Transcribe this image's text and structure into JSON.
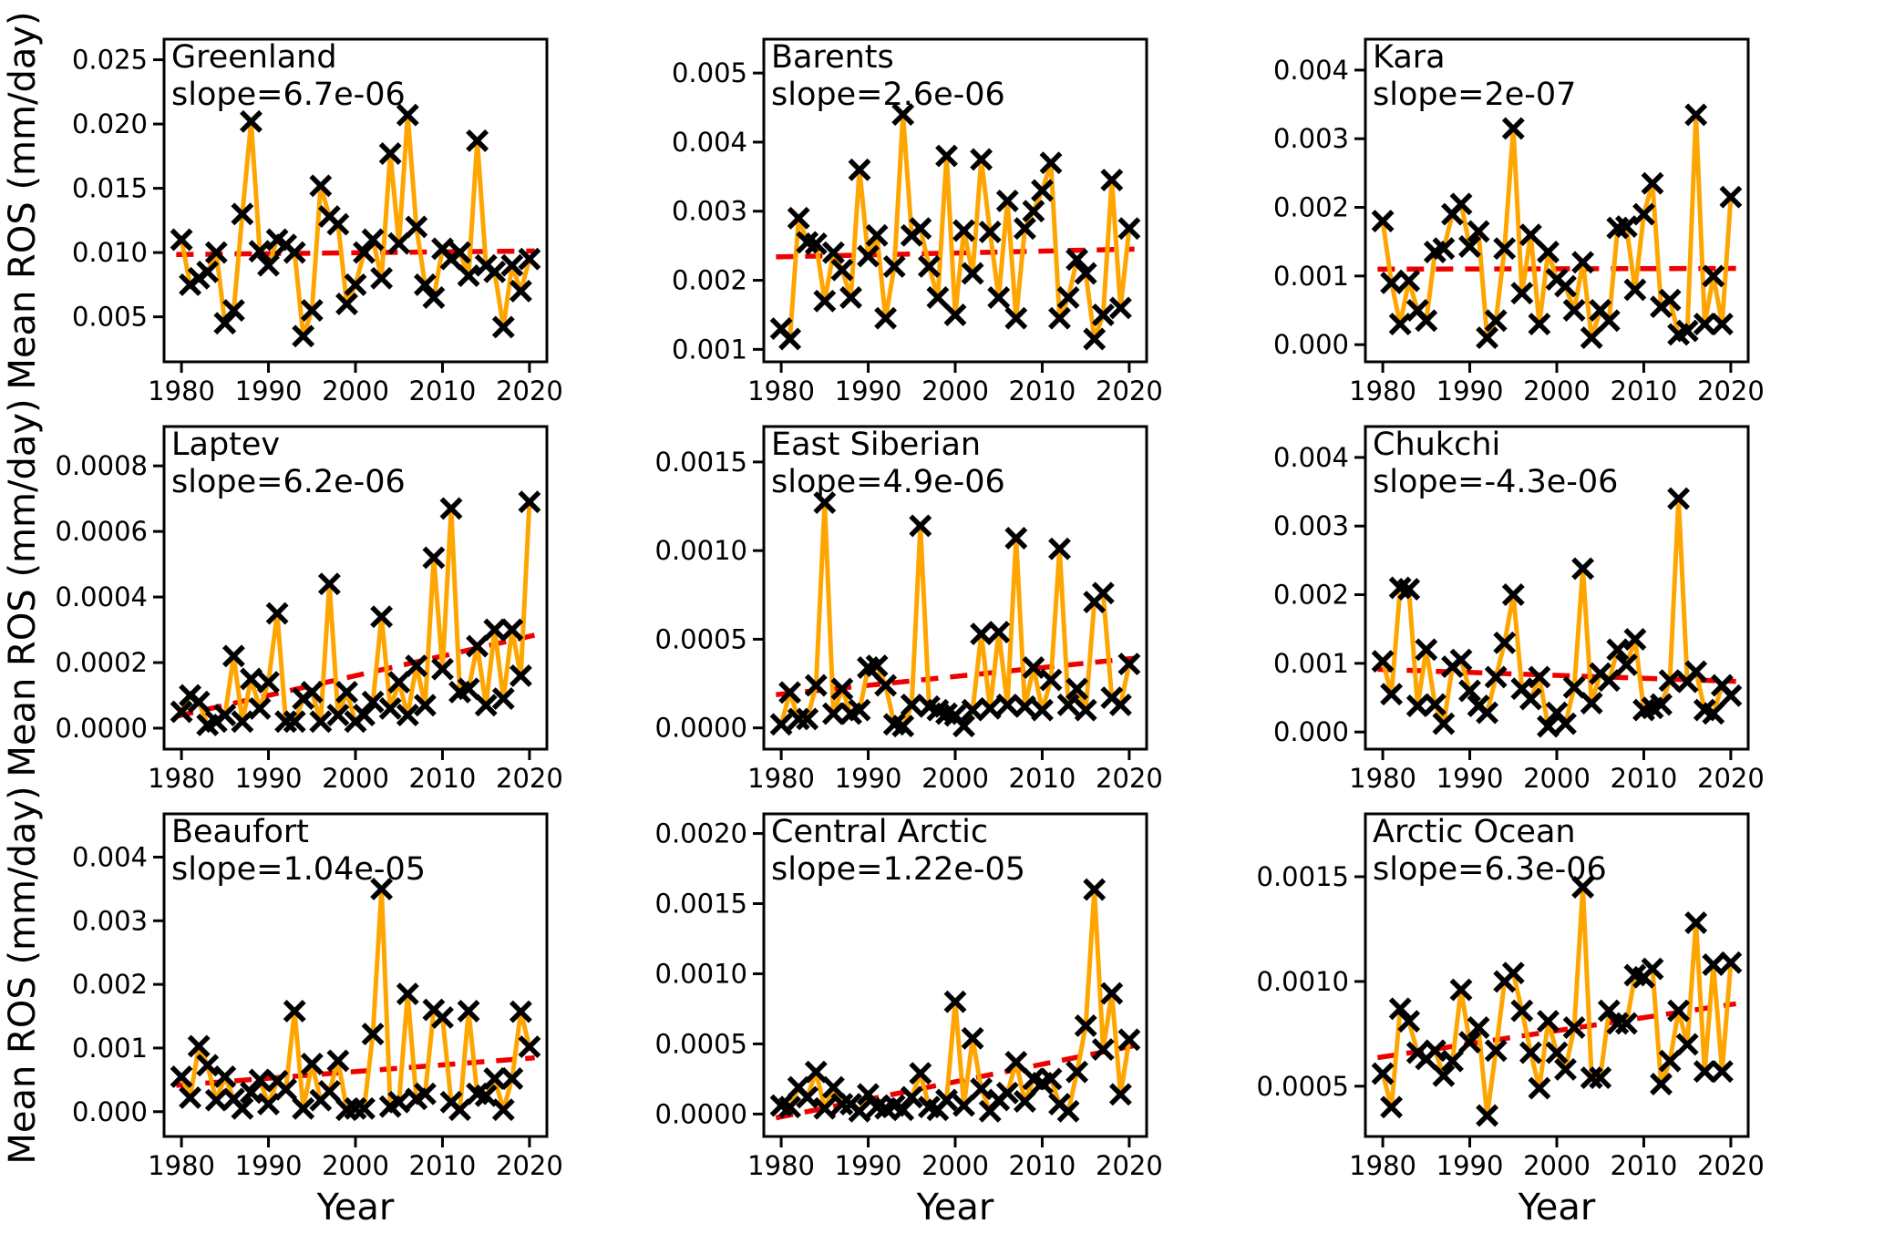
{
  "figure": {
    "ylabel": "Mean ROS (mm/day)",
    "xlabel": "Year",
    "colors": {
      "line": "#FFA500",
      "trend": "#EE0000",
      "marker": "#000000",
      "spine": "#000000",
      "background": "#FFFFFF"
    }
  },
  "chart_data": {
    "type": "line",
    "title": "",
    "xlabel": "Year",
    "ylabel": "Mean ROS (mm/day)",
    "grid": false,
    "legend": null,
    "marker_style": "x",
    "trend_style": "dashed",
    "x_years": [
      1980,
      1981,
      1982,
      1983,
      1984,
      1985,
      1986,
      1987,
      1988,
      1989,
      1990,
      1991,
      1992,
      1993,
      1994,
      1995,
      1996,
      1997,
      1998,
      1999,
      2000,
      2001,
      2002,
      2003,
      2004,
      2005,
      2006,
      2007,
      2008,
      2009,
      2010,
      2011,
      2012,
      2013,
      2014,
      2015,
      2016,
      2017,
      2018,
      2019,
      2020
    ],
    "xticks": [
      1980,
      1990,
      2000,
      2010,
      2020
    ],
    "xlim": [
      1978,
      2022
    ],
    "panels": [
      {
        "region": "Greenland",
        "slope_label": "slope=6.7e-06",
        "slope": 6.7e-06,
        "yticks": [
          0.005,
          0.01,
          0.015,
          0.02,
          0.025
        ],
        "ytick_decimals": 3,
        "ylim": [
          0.0015,
          0.0266
        ],
        "trend_y": [
          0.00985,
          0.01012
        ],
        "values": [
          0.011,
          0.0075,
          0.008,
          0.0085,
          0.01,
          0.0045,
          0.0055,
          0.013,
          0.0202,
          0.0101,
          0.009,
          0.011,
          0.0106,
          0.01,
          0.0035,
          0.0055,
          0.0152,
          0.0128,
          0.0122,
          0.006,
          0.0075,
          0.01,
          0.011,
          0.008,
          0.0177,
          0.0107,
          0.0207,
          0.012,
          0.0075,
          0.0065,
          0.0103,
          0.0095,
          0.01,
          0.0082,
          0.0187,
          0.009,
          0.0085,
          0.0042,
          0.009,
          0.007,
          0.0095
        ]
      },
      {
        "region": "Barents",
        "slope_label": "slope=2.6e-06",
        "slope": 2.6e-06,
        "yticks": [
          0.001,
          0.002,
          0.003,
          0.004,
          0.005
        ],
        "ytick_decimals": 3,
        "ylim": [
          0.00082,
          0.00549
        ],
        "trend_y": [
          0.00234,
          0.00245
        ],
        "values": [
          0.0013,
          0.00115,
          0.0029,
          0.00255,
          0.00253,
          0.0017,
          0.0024,
          0.00215,
          0.00175,
          0.0036,
          0.00235,
          0.00265,
          0.00145,
          0.0022,
          0.0044,
          0.00265,
          0.00275,
          0.0022,
          0.00175,
          0.0038,
          0.0015,
          0.00272,
          0.0021,
          0.00375,
          0.0027,
          0.00175,
          0.00315,
          0.00145,
          0.00275,
          0.003,
          0.0033,
          0.0037,
          0.00145,
          0.00175,
          0.0023,
          0.0021,
          0.00115,
          0.0015,
          0.00345,
          0.0016,
          0.00275
        ]
      },
      {
        "region": "Kara",
        "slope_label": "slope=2e-07",
        "slope": 2e-07,
        "yticks": [
          0.0,
          0.001,
          0.002,
          0.003,
          0.004
        ],
        "ytick_decimals": 3,
        "ylim": [
          -0.00025,
          0.00445
        ],
        "trend_y": [
          0.0011,
          0.00111
        ],
        "values": [
          0.0018,
          0.0009,
          0.0003,
          0.00093,
          0.0005,
          0.00035,
          0.00135,
          0.0014,
          0.0019,
          0.00205,
          0.00143,
          0.00165,
          0.0001,
          0.00035,
          0.0014,
          0.00315,
          0.00075,
          0.0016,
          0.0003,
          0.00135,
          0.00095,
          0.00085,
          0.0005,
          0.0012,
          0.0001,
          0.0005,
          0.00035,
          0.0017,
          0.00172,
          0.0008,
          0.0019,
          0.00235,
          0.00055,
          0.00065,
          0.00015,
          0.0002,
          0.00335,
          0.0003,
          0.001,
          0.0003,
          0.00215
        ]
      },
      {
        "region": "Laptev",
        "slope_label": "slope=6.2e-06",
        "slope": 6.2e-06,
        "yticks": [
          0.0,
          0.0002,
          0.0004,
          0.0006,
          0.0008
        ],
        "ytick_decimals": 4,
        "ylim": [
          -6.4e-05,
          0.00092
        ],
        "trend_y": [
          4e-05,
          0.00028
        ],
        "values": [
          5e-05,
          0.0001,
          8e-05,
          1e-05,
          2e-05,
          4e-05,
          0.00022,
          2e-05,
          0.00015,
          6e-05,
          0.00014,
          0.00035,
          2e-05,
          2e-05,
          9e-05,
          0.00011,
          2e-05,
          0.00044,
          4e-05,
          0.00011,
          2e-05,
          4e-05,
          8e-05,
          0.00034,
          6e-05,
          0.00014,
          4e-05,
          0.00019,
          7e-05,
          0.00052,
          0.00018,
          0.00067,
          0.00011,
          0.00012,
          0.00025,
          7e-05,
          0.0003,
          9e-05,
          0.0003,
          0.00016,
          0.00069
        ]
      },
      {
        "region": "East Siberian",
        "slope_label": "slope=4.9e-06",
        "slope": 4.9e-06,
        "yticks": [
          0.0,
          0.0005,
          0.001,
          0.0015
        ],
        "ytick_decimals": 4,
        "ylim": [
          -0.00012,
          0.0017
        ],
        "trend_y": [
          0.00019,
          0.00039
        ],
        "values": [
          2e-05,
          0.0002,
          5e-05,
          5e-05,
          0.00024,
          0.00127,
          8e-05,
          0.00022,
          8e-05,
          0.0001,
          0.00034,
          0.00035,
          0.00024,
          2e-05,
          1e-05,
          0.00013,
          0.00114,
          0.00012,
          0.0001,
          8e-05,
          7e-05,
          1e-05,
          0.0001,
          0.00053,
          0.00011,
          0.00054,
          0.00013,
          0.00107,
          0.00012,
          0.00034,
          0.0001,
          0.00027,
          0.00101,
          0.00013,
          0.00022,
          0.0001,
          0.00071,
          0.00076,
          0.00017,
          0.00013,
          0.00036
        ]
      },
      {
        "region": "Chukchi",
        "slope_label": "slope=-4.3e-06",
        "slope": -4.3e-06,
        "yticks": [
          0.0,
          0.001,
          0.002,
          0.003,
          0.004
        ],
        "ytick_decimals": 3,
        "ylim": [
          -0.00025,
          0.00445
        ],
        "trend_y": [
          0.00091,
          0.00074
        ],
        "values": [
          0.00103,
          0.00055,
          0.0021,
          0.00208,
          0.00038,
          0.0012,
          0.0004,
          0.00012,
          0.00095,
          0.00105,
          0.0006,
          0.00038,
          0.00028,
          0.0008,
          0.0013,
          0.002,
          0.00063,
          0.00048,
          0.0008,
          8e-05,
          0.00028,
          0.00012,
          0.00065,
          0.00238,
          0.00042,
          0.00085,
          0.00075,
          0.0012,
          0.00098,
          0.00135,
          0.00032,
          0.00035,
          0.0004,
          0.00075,
          0.0034,
          0.00073,
          0.00088,
          0.00032,
          0.00027,
          0.00068,
          0.00053
        ]
      },
      {
        "region": "Beaufort",
        "slope_label": "slope=1.04e-05",
        "slope": 1.04e-05,
        "yticks": [
          0.0,
          0.001,
          0.002,
          0.003,
          0.004
        ],
        "ytick_decimals": 3,
        "ylim": [
          -0.00039,
          0.00468
        ],
        "trend_y": [
          0.00042,
          0.00084
        ],
        "values": [
          0.00055,
          0.00022,
          0.00103,
          0.00073,
          0.00018,
          0.00055,
          0.0002,
          5e-05,
          0.0003,
          0.0005,
          0.00012,
          0.00048,
          0.00035,
          0.00158,
          5e-05,
          0.00075,
          0.00018,
          0.00032,
          0.0008,
          3e-05,
          5e-05,
          5e-05,
          0.00122,
          0.0035,
          8e-05,
          0.00015,
          0.00185,
          0.0002,
          0.00028,
          0.0016,
          0.00148,
          0.00015,
          3e-05,
          0.00158,
          0.00028,
          0.00025,
          0.00052,
          3e-05,
          0.00052,
          0.00157,
          0.00102
        ]
      },
      {
        "region": "Central Arctic",
        "slope_label": "slope=1.22e-05",
        "slope": 1.22e-05,
        "yticks": [
          0.0,
          0.0005,
          0.001,
          0.0015,
          0.002
        ],
        "ytick_decimals": 4,
        "ylim": [
          -0.00016,
          0.00214
        ],
        "trend_y": [
          -2e-05,
          0.00048
        ],
        "values": [
          6e-05,
          5e-05,
          0.00019,
          0.00012,
          0.0003,
          4e-05,
          0.00019,
          7e-05,
          7e-05,
          2e-05,
          0.00014,
          5e-05,
          4e-05,
          6e-05,
          3e-05,
          0.00012,
          0.00029,
          5e-05,
          3e-05,
          0.0001,
          0.0008,
          6e-05,
          0.00054,
          0.00018,
          2e-05,
          0.0001,
          0.00015,
          0.00037,
          9e-05,
          0.00025,
          0.00022,
          0.00025,
          7e-05,
          2e-05,
          0.0003,
          0.00063,
          0.0016,
          0.00046,
          0.00086,
          0.00014,
          0.00053
        ]
      },
      {
        "region": "Arctic Ocean",
        "slope_label": "slope=6.3e-06",
        "slope": 6.3e-06,
        "yticks": [
          0.0005,
          0.001,
          0.0015
        ],
        "ytick_decimals": 4,
        "ylim": [
          0.00026,
          0.0018
        ],
        "trend_y": [
          0.00064,
          0.00089
        ],
        "values": [
          0.00056,
          0.0004,
          0.00087,
          0.00081,
          0.00066,
          0.00063,
          0.00067,
          0.00055,
          0.00062,
          0.00096,
          0.00071,
          0.00078,
          0.00036,
          0.00067,
          0.001,
          0.00104,
          0.00086,
          0.00066,
          0.00049,
          0.00081,
          0.00066,
          0.00058,
          0.00078,
          0.00145,
          0.00054,
          0.00054,
          0.00086,
          0.0008,
          0.0008,
          0.00103,
          0.00102,
          0.00106,
          0.00051,
          0.00062,
          0.00086,
          0.0007,
          0.00128,
          0.00057,
          0.00108,
          0.00057,
          0.00109
        ]
      }
    ]
  }
}
